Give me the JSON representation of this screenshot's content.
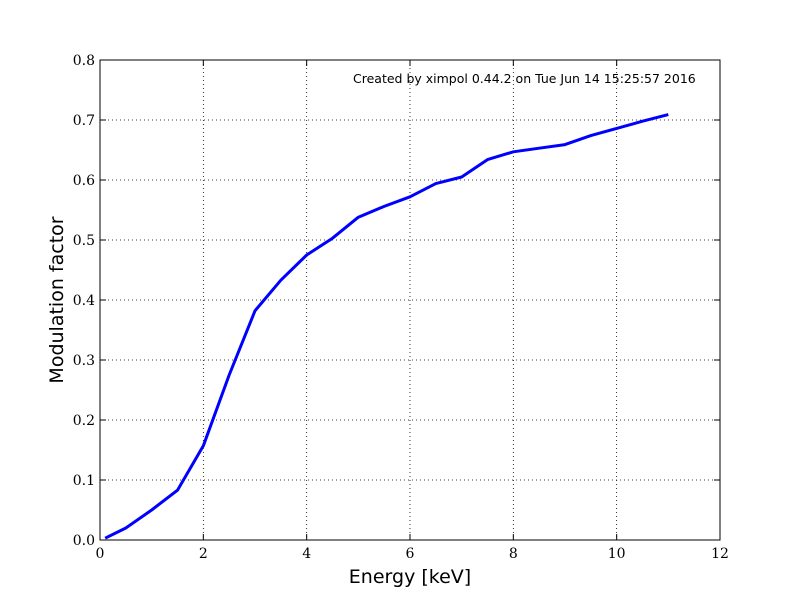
{
  "chart_data": {
    "type": "line",
    "title": "",
    "xlabel": "Energy [keV]",
    "ylabel": "Modulation factor",
    "xlim": [
      0,
      12
    ],
    "ylim": [
      0.0,
      0.8
    ],
    "xticks": [
      0,
      2,
      4,
      6,
      8,
      10,
      12
    ],
    "yticks": [
      0.0,
      0.1,
      0.2,
      0.3,
      0.4,
      0.5,
      0.6,
      0.7,
      0.8
    ],
    "xtick_labels": [
      "0",
      "2",
      "4",
      "6",
      "8",
      "10",
      "12"
    ],
    "ytick_labels": [
      "0.0",
      "0.1",
      "0.2",
      "0.3",
      "0.4",
      "0.5",
      "0.6",
      "0.7",
      "0.8"
    ],
    "grid": true,
    "annotation": "Created by ximpol 0.44.2 on Tue Jun 14 15:25:57 2016",
    "series": [
      {
        "name": "modulation factor",
        "color": "#0000ff",
        "x": [
          0.1,
          0.5,
          1.0,
          1.5,
          2.0,
          2.5,
          3.0,
          3.5,
          4.0,
          4.5,
          5.0,
          5.5,
          6.0,
          6.5,
          7.0,
          7.5,
          8.0,
          8.5,
          9.0,
          9.5,
          10.0,
          10.5,
          11.0
        ],
        "y": [
          0.003,
          0.02,
          0.05,
          0.083,
          0.157,
          0.275,
          0.382,
          0.433,
          0.475,
          0.503,
          0.538,
          0.556,
          0.572,
          0.594,
          0.605,
          0.634,
          0.647,
          0.653,
          0.659,
          0.674,
          0.686,
          0.698,
          0.709
        ]
      }
    ]
  }
}
